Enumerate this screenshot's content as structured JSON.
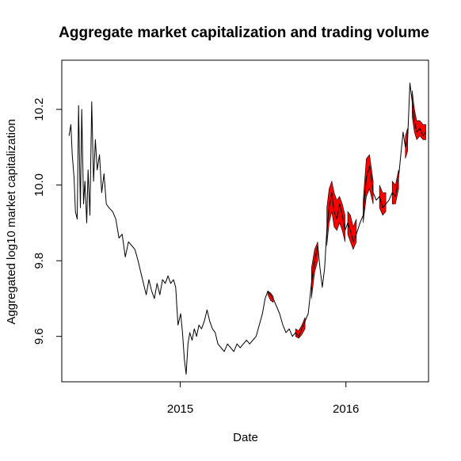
{
  "chart_data": {
    "type": "line",
    "title": "Aggregate market capitalization and trading volume",
    "xlabel": "Date",
    "ylabel": "Aggregated log10 market capitalization",
    "x_range": [
      "2014-04-15",
      "2016-07-01"
    ],
    "ylim": [
      9.48,
      10.33
    ],
    "grid": false,
    "legend": "none",
    "x_ticks": [
      {
        "label": "2015",
        "date": "2015-01-01"
      },
      {
        "label": "2016",
        "date": "2016-01-01"
      }
    ],
    "y_ticks": [
      9.6,
      9.8,
      10.0,
      10.2
    ],
    "series": [
      {
        "color": "#000000",
        "points": [
          [
            "2014-05-01",
            10.13
          ],
          [
            "2014-05-05",
            10.16
          ],
          [
            "2014-05-08",
            10.08
          ],
          [
            "2014-05-12",
            10.02
          ],
          [
            "2014-05-15",
            9.93
          ],
          [
            "2014-05-19",
            9.91
          ],
          [
            "2014-05-22",
            10.21
          ],
          [
            "2014-05-26",
            9.94
          ],
          [
            "2014-05-29",
            10.2
          ],
          [
            "2014-06-02",
            9.95
          ],
          [
            "2014-06-05",
            10.01
          ],
          [
            "2014-06-09",
            9.9
          ],
          [
            "2014-06-12",
            10.04
          ],
          [
            "2014-06-16",
            9.92
          ],
          [
            "2014-06-20",
            10.22
          ],
          [
            "2014-06-24",
            10.01
          ],
          [
            "2014-06-28",
            10.12
          ],
          [
            "2014-07-02",
            10.04
          ],
          [
            "2014-07-07",
            10.08
          ],
          [
            "2014-07-12",
            9.98
          ],
          [
            "2014-07-17",
            10.03
          ],
          [
            "2014-07-22",
            9.95
          ],
          [
            "2014-07-28",
            9.94
          ],
          [
            "2014-08-05",
            9.93
          ],
          [
            "2014-08-12",
            9.91
          ],
          [
            "2014-08-19",
            9.86
          ],
          [
            "2014-08-26",
            9.87
          ],
          [
            "2014-09-02",
            9.81
          ],
          [
            "2014-09-09",
            9.85
          ],
          [
            "2014-09-16",
            9.84
          ],
          [
            "2014-09-23",
            9.83
          ],
          [
            "2014-09-30",
            9.8
          ],
          [
            "2014-10-06",
            9.77
          ],
          [
            "2014-10-12",
            9.74
          ],
          [
            "2014-10-18",
            9.71
          ],
          [
            "2014-10-24",
            9.75
          ],
          [
            "2014-10-30",
            9.72
          ],
          [
            "2014-11-05",
            9.7
          ],
          [
            "2014-11-11",
            9.74
          ],
          [
            "2014-11-17",
            9.71
          ],
          [
            "2014-11-23",
            9.75
          ],
          [
            "2014-11-29",
            9.74
          ],
          [
            "2014-12-05",
            9.76
          ],
          [
            "2014-12-11",
            9.74
          ],
          [
            "2014-12-17",
            9.75
          ],
          [
            "2014-12-22",
            9.73
          ],
          [
            "2014-12-27",
            9.63
          ],
          [
            "2015-01-02",
            9.66
          ],
          [
            "2015-01-06",
            9.61
          ],
          [
            "2015-01-10",
            9.54
          ],
          [
            "2015-01-14",
            9.5
          ],
          [
            "2015-01-18",
            9.58
          ],
          [
            "2015-01-22",
            9.61
          ],
          [
            "2015-01-27",
            9.59
          ],
          [
            "2015-02-01",
            9.62
          ],
          [
            "2015-02-06",
            9.6
          ],
          [
            "2015-02-11",
            9.63
          ],
          [
            "2015-02-17",
            9.62
          ],
          [
            "2015-02-23",
            9.64
          ],
          [
            "2015-03-01",
            9.67
          ],
          [
            "2015-03-07",
            9.64
          ],
          [
            "2015-03-13",
            9.62
          ],
          [
            "2015-03-19",
            9.61
          ],
          [
            "2015-03-25",
            9.58
          ],
          [
            "2015-04-01",
            9.57
          ],
          [
            "2015-04-08",
            9.56
          ],
          [
            "2015-04-15",
            9.58
          ],
          [
            "2015-04-22",
            9.57
          ],
          [
            "2015-04-29",
            9.56
          ],
          [
            "2015-05-06",
            9.58
          ],
          [
            "2015-05-13",
            9.57
          ],
          [
            "2015-05-20",
            9.58
          ],
          [
            "2015-05-27",
            9.59
          ],
          [
            "2015-06-03",
            9.58
          ],
          [
            "2015-06-10",
            9.59
          ],
          [
            "2015-06-17",
            9.6
          ],
          [
            "2015-06-24",
            9.63
          ],
          [
            "2015-07-01",
            9.66
          ],
          [
            "2015-07-07",
            9.7
          ],
          [
            "2015-07-13",
            9.72
          ],
          [
            "2015-07-19",
            9.71
          ],
          [
            "2015-07-25",
            9.7
          ],
          [
            "2015-08-01",
            9.68
          ],
          [
            "2015-08-08",
            9.66
          ],
          [
            "2015-08-15",
            9.63
          ],
          [
            "2015-08-22",
            9.61
          ],
          [
            "2015-08-29",
            9.62
          ],
          [
            "2015-09-05",
            9.6
          ],
          [
            "2015-09-12",
            9.61
          ],
          [
            "2015-09-19",
            9.6
          ],
          [
            "2015-09-26",
            9.62
          ],
          [
            "2015-10-03",
            9.64
          ],
          [
            "2015-10-10",
            9.66
          ],
          [
            "2015-10-17",
            9.74
          ],
          [
            "2015-10-24",
            9.8
          ],
          [
            "2015-10-31",
            9.84
          ],
          [
            "2015-11-05",
            9.78
          ],
          [
            "2015-11-10",
            9.73
          ],
          [
            "2015-11-15",
            9.78
          ],
          [
            "2015-11-20",
            9.88
          ],
          [
            "2015-11-25",
            9.94
          ],
          [
            "2015-12-01",
            9.98
          ],
          [
            "2015-12-06",
            9.93
          ],
          [
            "2015-12-12",
            9.91
          ],
          [
            "2015-12-18",
            9.95
          ],
          [
            "2015-12-24",
            9.92
          ],
          [
            "2015-12-30",
            9.88
          ],
          [
            "2016-01-05",
            9.9
          ],
          [
            "2016-01-11",
            9.88
          ],
          [
            "2016-01-17",
            9.85
          ],
          [
            "2016-01-24",
            9.87
          ],
          [
            "2016-02-01",
            9.9
          ],
          [
            "2016-02-08",
            9.92
          ],
          [
            "2016-02-15",
            10.02
          ],
          [
            "2016-02-22",
            10.05
          ],
          [
            "2016-03-01",
            9.98
          ],
          [
            "2016-03-08",
            9.96
          ],
          [
            "2016-03-15",
            9.97
          ],
          [
            "2016-03-22",
            9.94
          ],
          [
            "2016-03-29",
            9.95
          ],
          [
            "2016-04-05",
            9.96
          ],
          [
            "2016-04-12",
            9.98
          ],
          [
            "2016-04-19",
            9.97
          ],
          [
            "2016-04-26",
            10.02
          ],
          [
            "2016-05-01",
            10.08
          ],
          [
            "2016-05-06",
            10.14
          ],
          [
            "2016-05-11",
            10.1
          ],
          [
            "2016-05-16",
            10.12
          ],
          [
            "2016-05-21",
            10.27
          ],
          [
            "2016-05-26",
            10.22
          ],
          [
            "2016-05-31",
            10.17
          ],
          [
            "2016-06-05",
            10.14
          ],
          [
            "2016-06-12",
            10.15
          ],
          [
            "2016-06-19",
            10.13
          ],
          [
            "2016-06-25",
            10.14
          ]
        ]
      },
      {
        "color": "#ff0000",
        "bands": [
          {
            "points": [
              [
                "2015-07-13",
                9.72,
                9.71
              ],
              [
                "2015-07-19",
                9.715,
                9.695
              ],
              [
                "2015-07-25",
                9.705,
                9.69
              ]
            ]
          },
          {
            "points": [
              [
                "2015-09-12",
                9.62,
                9.6
              ],
              [
                "2015-09-19",
                9.615,
                9.595
              ],
              [
                "2015-09-26",
                9.63,
                9.605
              ],
              [
                "2015-10-03",
                9.65,
                9.62
              ]
            ]
          },
          {
            "points": [
              [
                "2015-10-17",
                9.78,
                9.7
              ],
              [
                "2015-10-24",
                9.83,
                9.77
              ],
              [
                "2015-10-31",
                9.85,
                9.8
              ]
            ]
          },
          {
            "points": [
              [
                "2015-11-20",
                9.94,
                9.84
              ],
              [
                "2015-11-25",
                9.99,
                9.9
              ],
              [
                "2015-12-01",
                10.01,
                9.93
              ],
              [
                "2015-12-06",
                9.98,
                9.89
              ],
              [
                "2015-12-12",
                9.96,
                9.88
              ],
              [
                "2015-12-18",
                9.97,
                9.9
              ],
              [
                "2015-12-24",
                9.95,
                9.88
              ],
              [
                "2015-12-30",
                9.92,
                9.85
              ]
            ]
          },
          {
            "points": [
              [
                "2016-01-05",
                9.93,
                9.87
              ],
              [
                "2016-01-11",
                9.92,
                9.85
              ],
              [
                "2016-01-17",
                9.89,
                9.83
              ],
              [
                "2016-01-24",
                9.91,
                9.85
              ]
            ]
          },
          {
            "points": [
              [
                "2016-02-08",
                9.96,
                9.9
              ],
              [
                "2016-02-15",
                10.07,
                9.97
              ],
              [
                "2016-02-22",
                10.08,
                9.99
              ],
              [
                "2016-03-01",
                10.01,
                9.95
              ]
            ]
          },
          {
            "points": [
              [
                "2016-03-15",
                10.0,
                9.94
              ],
              [
                "2016-03-22",
                9.98,
                9.92
              ],
              [
                "2016-03-29",
                9.98,
                9.93
              ]
            ]
          },
          {
            "points": [
              [
                "2016-04-12",
                10.01,
                9.95
              ],
              [
                "2016-04-19",
                10.0,
                9.95
              ],
              [
                "2016-04-26",
                10.04,
                9.99
              ]
            ]
          },
          {
            "points": [
              [
                "2016-05-11",
                10.13,
                10.07
              ],
              [
                "2016-05-16",
                10.15,
                10.09
              ]
            ]
          },
          {
            "points": [
              [
                "2016-05-26",
                10.25,
                10.18
              ],
              [
                "2016-05-31",
                10.2,
                10.14
              ],
              [
                "2016-06-05",
                10.17,
                10.12
              ],
              [
                "2016-06-12",
                10.17,
                10.13
              ],
              [
                "2016-06-19",
                10.16,
                10.12
              ],
              [
                "2016-06-25",
                10.16,
                10.12
              ]
            ]
          }
        ]
      }
    ]
  }
}
